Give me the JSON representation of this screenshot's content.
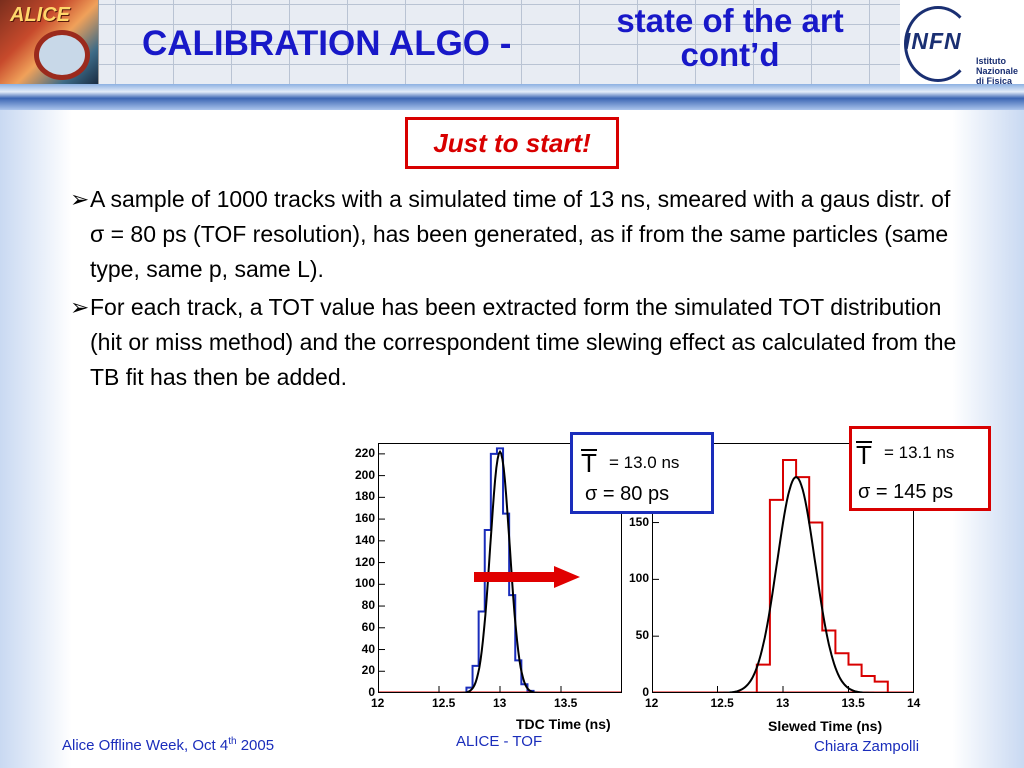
{
  "header": {
    "title_main": "CALIBRATION ALGO -",
    "title_sub_line1": "state of the art",
    "title_sub_line2": "cont’d",
    "left_logo_text": "ALICE",
    "right_logo_letters": "INFN",
    "right_logo_inst_line1": "Istituto Nazionale",
    "right_logo_inst_line2": "di Fisica Nucleare"
  },
  "callout": "Just to start!",
  "bullets": [
    {
      "arrow": "➢",
      "text": "A sample of 1000 tracks with a simulated time of 13 ns, smeared with a gaus distr. of σ = 80 ps (TOF resolution), has been generated, as if from the same particles (same type, same p, same L)."
    },
    {
      "arrow": "➢",
      "text": "For each track, a TOT value has been extracted form the simulated TOT distribution (hit or miss method) and the correspondent time slewing effect as calculated from the TB fit has then be added."
    }
  ],
  "stats": {
    "left": {
      "T": "T",
      "value": "= 13.0 ns",
      "sigma": "σ = 80 ps"
    },
    "right": {
      "T": "T",
      "value": "= 13.1 ns",
      "sigma": "σ = 145 ps"
    }
  },
  "footer": {
    "left_prefix": "Alice Offline Week, Oct 4",
    "left_sup": "th",
    "left_suffix": " 2005",
    "center": "ALICE - TOF",
    "right": "Chiara Zampolli"
  },
  "colors": {
    "title": "#1818c8",
    "accent_red": "#d80000",
    "accent_blue": "#1a2dbb"
  },
  "chart_data": [
    {
      "type": "bar",
      "xlabel": "TDC Time (ns)",
      "ylabel": "",
      "xlim": [
        12,
        14
      ],
      "ylim": [
        0,
        230
      ],
      "x_ticks": [
        "12",
        "12.5",
        "13",
        "13.5"
      ],
      "y_ticks": [
        "0",
        "20",
        "40",
        "60",
        "80",
        "100",
        "120",
        "140",
        "160",
        "180",
        "200",
        "220"
      ],
      "bin_width": 0.05,
      "series": [
        {
          "color": "#1a2dbb",
          "x": [
            12.75,
            12.8,
            12.85,
            12.9,
            12.95,
            13.0,
            13.05,
            13.1,
            13.15,
            13.2,
            13.25
          ],
          "values": [
            5,
            25,
            75,
            150,
            220,
            225,
            165,
            90,
            30,
            8,
            2
          ]
        }
      ],
      "fit": {
        "color": "#000000",
        "mean": 13.0,
        "sigma": 0.08,
        "amplitude": 222
      }
    },
    {
      "type": "bar",
      "xlabel": "Slewed Time (ns)",
      "ylabel": "",
      "xlim": [
        12,
        14
      ],
      "ylim": [
        0,
        220
      ],
      "x_ticks": [
        "12",
        "12.5",
        "13",
        "13.5",
        "14"
      ],
      "y_ticks": [
        "0",
        "50",
        "100",
        "150"
      ],
      "bin_width": 0.1,
      "series": [
        {
          "color": "#d80000",
          "x": [
            12.85,
            12.95,
            13.05,
            13.15,
            13.25,
            13.35,
            13.45,
            13.55,
            13.65,
            13.75
          ],
          "values": [
            25,
            170,
            205,
            190,
            150,
            55,
            35,
            25,
            15,
            10
          ]
        }
      ],
      "fit": {
        "color": "#000000",
        "mean": 13.1,
        "sigma": 0.145,
        "amplitude": 190
      }
    }
  ]
}
